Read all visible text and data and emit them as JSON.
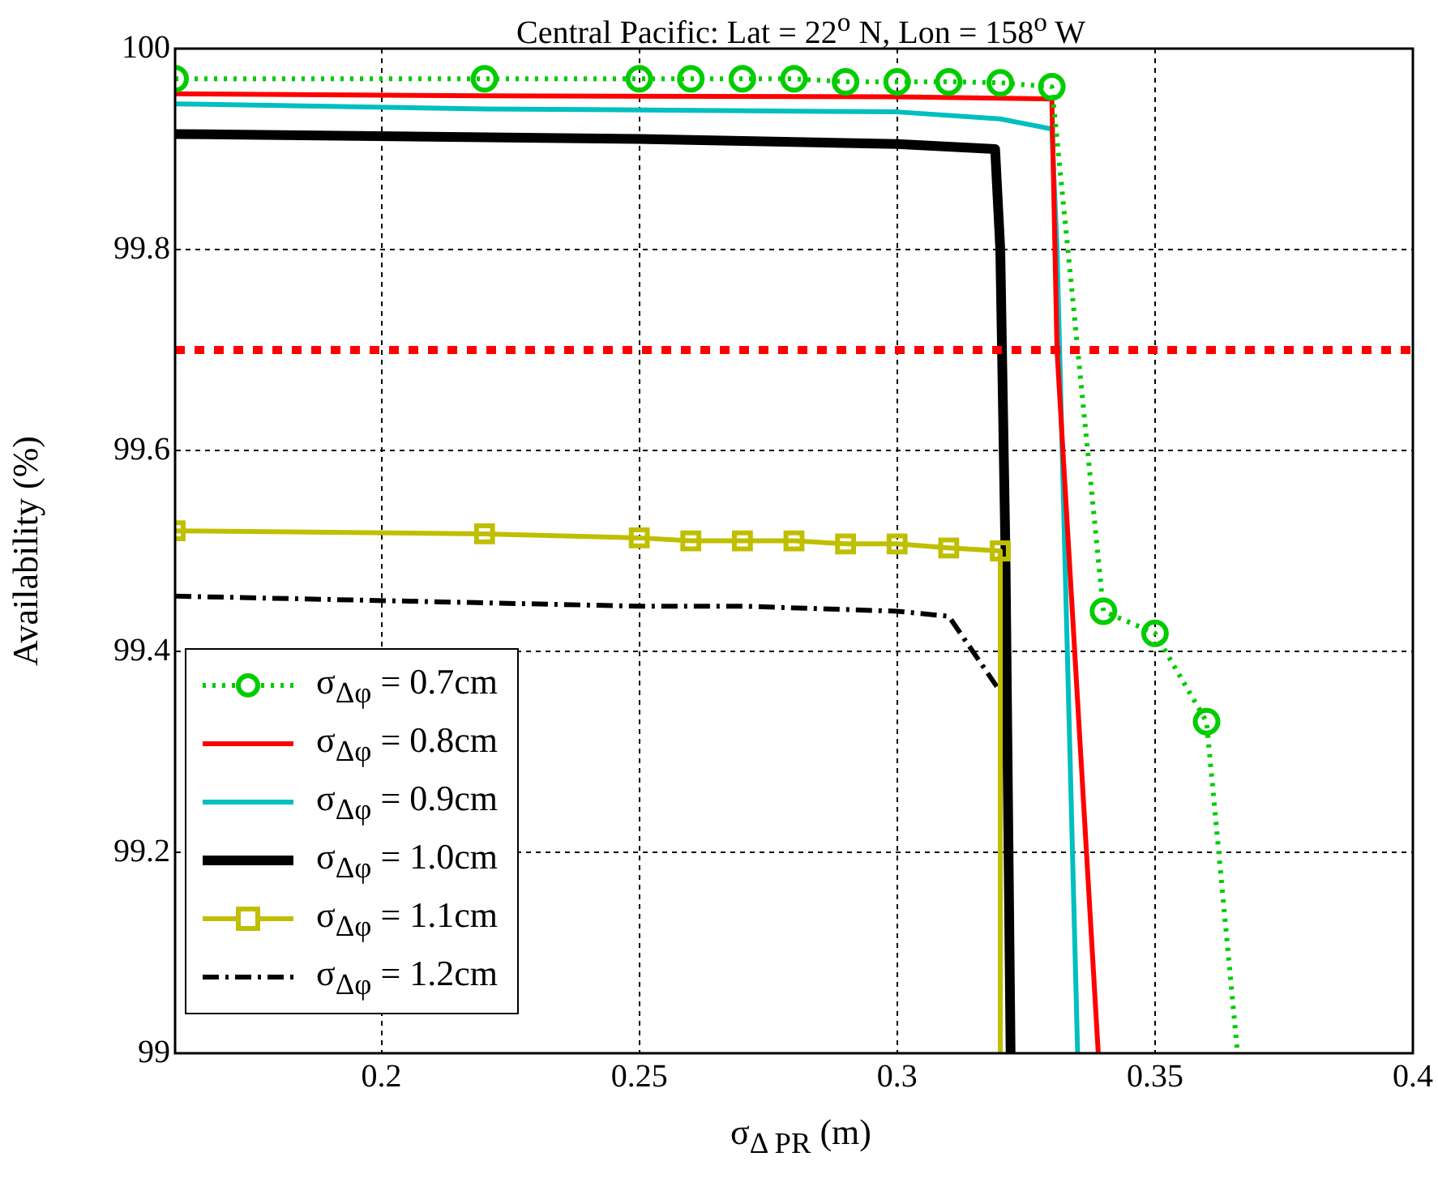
{
  "chart_data": {
    "type": "line",
    "title": "Central Pacific: Lat = 22$^{o}$ N, Lon = 158$^{o}$ W",
    "xlabel": "σ$_{Δ PR}$ (m)",
    "ylabel": "Availability (%)",
    "xlim": [
      0.16,
      0.4
    ],
    "xticks": [
      0.2,
      0.25,
      0.3,
      0.35,
      0.4
    ],
    "ylim": [
      99,
      100
    ],
    "yticks": [
      99,
      99.2,
      99.4,
      99.6,
      99.8,
      100
    ],
    "grid": true,
    "legend": "bottom left",
    "ref_lines": [
      {
        "axis": "y",
        "value": 99.7,
        "color": "#ff0000",
        "line_style": "dotted"
      }
    ],
    "series": [
      {
        "name": "σ$_{Δφ}$ = 0.7cm",
        "color": "#00cc00",
        "marker": "circle",
        "line_style": "dotted",
        "x": [
          0.16,
          0.22,
          0.25,
          0.26,
          0.27,
          0.28,
          0.29,
          0.3,
          0.31,
          0.32,
          0.33,
          0.34,
          0.35,
          0.36,
          0.366
        ],
        "values": [
          99.97,
          99.97,
          99.97,
          99.97,
          99.97,
          99.97,
          99.967,
          99.967,
          99.967,
          99.966,
          99.962,
          99.44,
          99.418,
          99.33,
          99
        ]
      },
      {
        "name": "σ$_{Δφ}$ = 0.8cm",
        "color": "#ff0000",
        "marker": "none",
        "line_style": "solid",
        "x": [
          0.16,
          0.22,
          0.3,
          0.33,
          0.331,
          0.339
        ],
        "values": [
          99.955,
          99.953,
          99.952,
          99.95,
          99.7,
          99
        ]
      },
      {
        "name": "σ$_{Δφ}$ = 0.9cm",
        "color": "#00bfbf",
        "marker": "none",
        "line_style": "solid",
        "x": [
          0.16,
          0.22,
          0.3,
          0.32,
          0.33,
          0.331,
          0.335
        ],
        "values": [
          99.945,
          99.94,
          99.937,
          99.93,
          99.92,
          99.8,
          99
        ]
      },
      {
        "name": "σ$_{Δφ}$ = 1.0cm",
        "color": "#000000",
        "marker": "none",
        "line_style": "solid",
        "x": [
          0.16,
          0.25,
          0.3,
          0.319,
          0.32,
          0.321,
          0.322
        ],
        "values": [
          99.915,
          99.91,
          99.905,
          99.9,
          99.8,
          99.5,
          99
        ]
      },
      {
        "name": "σ$_{Δφ}$ = 1.1cm",
        "color": "#bfbf00",
        "marker": "square",
        "line_style": "solid",
        "x": [
          0.16,
          0.22,
          0.25,
          0.26,
          0.27,
          0.28,
          0.29,
          0.3,
          0.31,
          0.32,
          0.32
        ],
        "values": [
          99.52,
          99.517,
          99.513,
          99.51,
          99.51,
          99.51,
          99.507,
          99.507,
          99.503,
          99.5,
          99
        ]
      },
      {
        "name": "σ$_{Δφ}$ = 1.2cm",
        "color": "#000000",
        "marker": "none",
        "line_style": "dashdot",
        "x": [
          0.16,
          0.25,
          0.27,
          0.3,
          0.31,
          0.32,
          0.32
        ],
        "values": [
          99.455,
          99.445,
          99.445,
          99.44,
          99.435,
          99.36,
          99
        ]
      }
    ]
  }
}
